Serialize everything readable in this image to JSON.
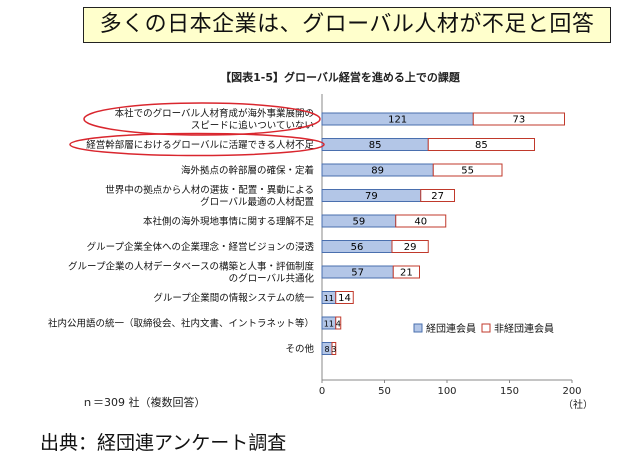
{
  "headline": "多くの日本企業は、グローバル人材が不足と回答",
  "footnote": "ｎ＝309 社（複数回答）",
  "source": "出典：経団連アンケート調査",
  "colors": {
    "series1_fill": "#b3c6e7",
    "series1_stroke": "#4a6fae",
    "series2_fill": "#ffffff",
    "series2_stroke": "#c0392b",
    "highlight": "#d9262e"
  },
  "chart_data": {
    "type": "bar",
    "orientation": "horizontal",
    "stacked": true,
    "title": "【図表1-5】グローバル経営を進める上での課題",
    "categories": [
      [
        "本社でのグローバル人材育成が海外事業展開の",
        "スピードに追いついていない"
      ],
      [
        "経営幹部層におけるグローバルに活躍できる人材不足"
      ],
      [
        "海外拠点の幹部層の確保・定着"
      ],
      [
        "世界中の拠点から人材の選抜・配置・異動による",
        "グローバル最適の人材配置"
      ],
      [
        "本社側の海外現地事情に関する理解不足"
      ],
      [
        "グループ企業全体への企業理念・経営ビジョンの浸透"
      ],
      [
        "グループ企業の人材データベースの構築と人事・評価制度",
        "のグローバル共通化"
      ],
      [
        "グループ企業間の情報システムの統一"
      ],
      [
        "社内公用語の統一（取締役会、社内文書、イントラネット等）"
      ],
      [
        "その他"
      ]
    ],
    "series": [
      {
        "name": "経団連会員",
        "values": [
          121,
          85,
          89,
          79,
          59,
          56,
          57,
          11,
          11,
          8
        ]
      },
      {
        "name": "非経団連会員",
        "values": [
          73,
          85,
          55,
          27,
          40,
          29,
          21,
          14,
          4,
          3
        ]
      }
    ],
    "value_labels": [
      [
        "121",
        "85",
        "89",
        "79",
        "59",
        "56",
        "57",
        "11",
        "11",
        "8"
      ],
      [
        "73",
        "85",
        "55",
        "27",
        "40",
        "29",
        "21",
        "14",
        "4",
        "3"
      ]
    ],
    "xlim": [
      0,
      200
    ],
    "xticks": [
      "0",
      "50",
      "100",
      "150",
      "200"
    ],
    "x_unit": "（社）",
    "highlighted_categories": [
      0,
      1
    ],
    "legend_position": "bottom-right",
    "grid": false
  }
}
